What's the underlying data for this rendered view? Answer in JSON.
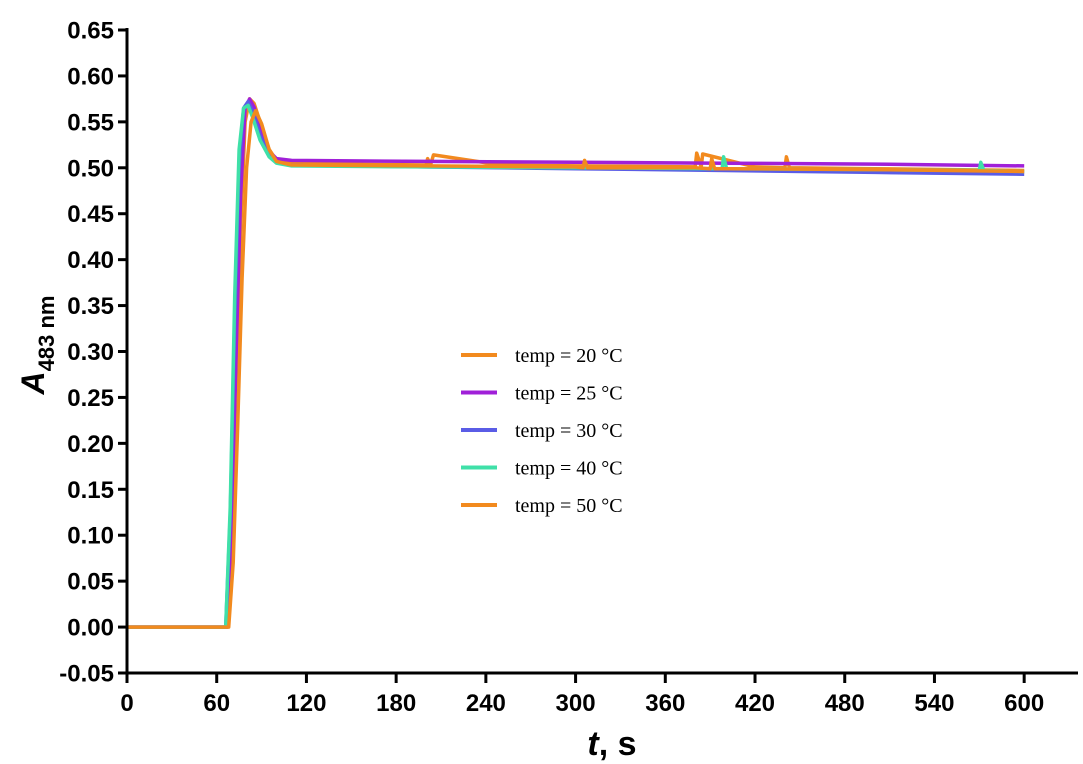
{
  "chart_data": {
    "type": "line",
    "title": "",
    "xlabel": {
      "var": "t",
      "rest": ", s"
    },
    "ylabel": {
      "var": "A",
      "sub": "483 nm"
    },
    "xlim": [
      0,
      636
    ],
    "ylim": [
      -0.05,
      0.65
    ],
    "xticks": [
      0,
      60,
      120,
      180,
      240,
      300,
      360,
      420,
      480,
      540,
      600
    ],
    "xtick_labels": [
      "0",
      "60",
      "120",
      "180",
      "240",
      "300",
      "360",
      "420",
      "480",
      "540",
      "600"
    ],
    "yticks": [
      -0.05,
      0.0,
      0.05,
      0.1,
      0.15,
      0.2,
      0.25,
      0.3,
      0.35,
      0.4,
      0.45,
      0.5,
      0.55,
      0.6,
      0.65
    ],
    "ytick_labels": [
      "-0.05",
      "0.00",
      "0.05",
      "0.10",
      "0.15",
      "0.20",
      "0.25",
      "0.30",
      "0.35",
      "0.40",
      "0.45",
      "0.50",
      "0.55",
      "0.60",
      "0.65"
    ],
    "grid": false,
    "legend_position": "center",
    "series": [
      {
        "name": "temp = 20 °C",
        "color": "#F28A1E",
        "x": [
          0,
          60,
          67,
          70,
          73,
          76,
          79,
          82,
          85,
          90,
          95,
          100,
          110,
          150,
          200,
          201,
          203,
          205,
          250,
          300,
          380,
          381,
          384,
          385,
          420,
          440,
          441,
          443,
          500,
          600
        ],
        "y": [
          0.0,
          0.0,
          0.0,
          0.08,
          0.25,
          0.43,
          0.55,
          0.575,
          0.57,
          0.545,
          0.52,
          0.508,
          0.505,
          0.504,
          0.503,
          0.51,
          0.503,
          0.514,
          0.503,
          0.502,
          0.501,
          0.516,
          0.501,
          0.515,
          0.501,
          0.5,
          0.512,
          0.5,
          0.499,
          0.497
        ]
      },
      {
        "name": "temp = 25 °C",
        "color": "#A020D8",
        "x": [
          0,
          60,
          67,
          70,
          73,
          76,
          79,
          82,
          85,
          90,
          95,
          100,
          110,
          200,
          300,
          400,
          500,
          600
        ],
        "y": [
          0.0,
          0.0,
          0.0,
          0.1,
          0.3,
          0.47,
          0.565,
          0.575,
          0.566,
          0.54,
          0.518,
          0.51,
          0.508,
          0.507,
          0.506,
          0.505,
          0.504,
          0.502
        ]
      },
      {
        "name": "temp = 30 °C",
        "color": "#5A5CE6",
        "x": [
          0,
          60,
          66,
          69,
          72,
          75,
          78,
          81,
          84,
          89,
          95,
          100,
          110,
          200,
          300,
          400,
          500,
          600
        ],
        "y": [
          0.0,
          0.0,
          0.0,
          0.12,
          0.33,
          0.5,
          0.565,
          0.572,
          0.562,
          0.535,
          0.515,
          0.506,
          0.503,
          0.501,
          0.499,
          0.497,
          0.495,
          0.493
        ]
      },
      {
        "name": "temp = 40 °C",
        "color": "#3FE0A8",
        "x": [
          0,
          60,
          66,
          69,
          72,
          75,
          78,
          81,
          84,
          89,
          95,
          100,
          110,
          200,
          300,
          398,
          399,
          401,
          500,
          570,
          571,
          573,
          600
        ],
        "y": [
          0.0,
          0.0,
          0.0,
          0.13,
          0.36,
          0.52,
          0.565,
          0.568,
          0.555,
          0.53,
          0.512,
          0.505,
          0.502,
          0.501,
          0.5,
          0.499,
          0.512,
          0.499,
          0.498,
          0.497,
          0.506,
          0.497,
          0.496
        ]
      },
      {
        "name": "temp = 50 °C",
        "color": "#F28A1E",
        "x": [
          0,
          60,
          68,
          71,
          74,
          77,
          80,
          83,
          86,
          90,
          95,
          100,
          110,
          200,
          300,
          305,
          306,
          308,
          380,
          390,
          391,
          393,
          400,
          500,
          600
        ],
        "y": [
          0.0,
          0.0,
          0.0,
          0.07,
          0.22,
          0.38,
          0.5,
          0.55,
          0.562,
          0.548,
          0.52,
          0.507,
          0.503,
          0.502,
          0.501,
          0.5,
          0.508,
          0.5,
          0.5,
          0.499,
          0.51,
          0.499,
          0.499,
          0.498,
          0.496
        ]
      }
    ]
  }
}
